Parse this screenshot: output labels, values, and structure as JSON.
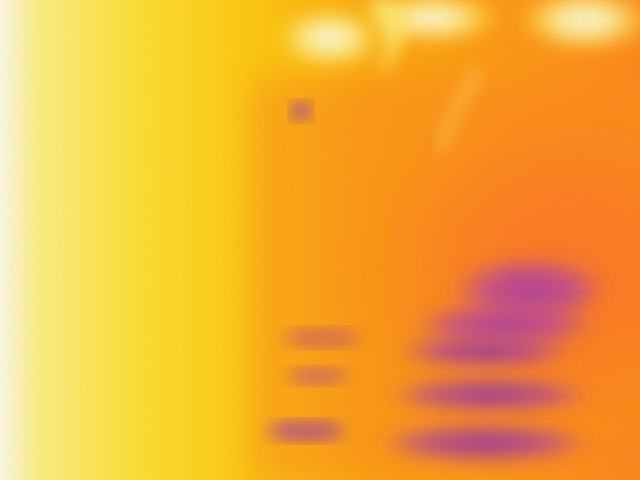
{
  "image": {
    "kind": "thermal-camera-photo",
    "palette": [
      "#ffffff",
      "#fff26a",
      "#ffd200",
      "#ff9a00",
      "#ff6a1e",
      "#d8404a",
      "#b02bb0",
      "#8a1fa0"
    ]
  }
}
